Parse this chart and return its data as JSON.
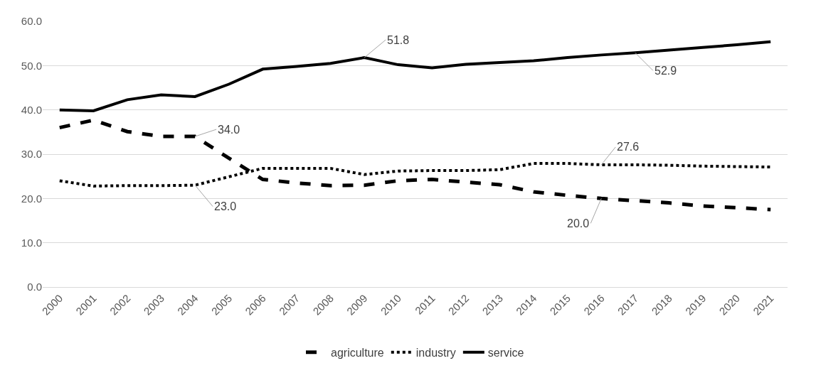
{
  "chart_data": {
    "type": "line",
    "categories": [
      "2000",
      "2001",
      "2002",
      "2003",
      "2004",
      "2005",
      "2006",
      "2007",
      "2008",
      "2009",
      "2010",
      "2011",
      "2012",
      "2013",
      "2014",
      "2015",
      "2016",
      "2017",
      "2018",
      "2019",
      "2020",
      "2021"
    ],
    "series": [
      {
        "name": "agriculture",
        "color": "#000000",
        "line_style": "dashed",
        "values": [
          36.0,
          37.7,
          35.1,
          34.0,
          34.0,
          29.1,
          24.3,
          23.5,
          22.9,
          23.0,
          24.0,
          24.3,
          23.7,
          23.1,
          21.5,
          20.7,
          20.0,
          19.5,
          19.0,
          18.3,
          17.9,
          17.5
        ]
      },
      {
        "name": "industry",
        "color": "#000000",
        "line_style": "dotted",
        "values": [
          24.0,
          22.8,
          22.9,
          22.9,
          23.0,
          24.9,
          26.8,
          26.8,
          26.8,
          25.4,
          26.2,
          26.3,
          26.3,
          26.5,
          27.9,
          27.9,
          27.6,
          27.6,
          27.5,
          27.3,
          27.2,
          27.1
        ]
      },
      {
        "name": "service",
        "color": "#000000",
        "line_style": "solid",
        "values": [
          40.0,
          39.8,
          42.3,
          43.4,
          43.0,
          45.8,
          49.2,
          49.8,
          50.5,
          51.8,
          50.2,
          49.5,
          50.3,
          50.7,
          51.1,
          51.8,
          52.4,
          52.9,
          53.5,
          54.1,
          54.7,
          55.4
        ]
      }
    ],
    "ylim": [
      0,
      60
    ],
    "yticks": [
      {
        "value": 0,
        "label": "0.0"
      },
      {
        "value": 10,
        "label": "10.0"
      },
      {
        "value": 20,
        "label": "20.0"
      },
      {
        "value": 30,
        "label": "30.0"
      },
      {
        "value": 40,
        "label": "40.0"
      },
      {
        "value": 50,
        "label": "50.0"
      },
      {
        "value": 60,
        "label": "60.0"
      }
    ],
    "grid": "y",
    "legend": "bottom",
    "marker": "none",
    "annotations": [
      {
        "text": "34.0",
        "x": "2004",
        "y": 34.0
      },
      {
        "text": "23.0",
        "x": "2004",
        "y": 23.0
      },
      {
        "text": "51.8",
        "x": "2009",
        "y": 51.8
      },
      {
        "text": "52.9",
        "x": "2017",
        "y": 52.9
      },
      {
        "text": "27.6",
        "x": "2016",
        "y": 27.6
      },
      {
        "text": "20.0",
        "x": "2016",
        "y": 20.0
      }
    ]
  }
}
